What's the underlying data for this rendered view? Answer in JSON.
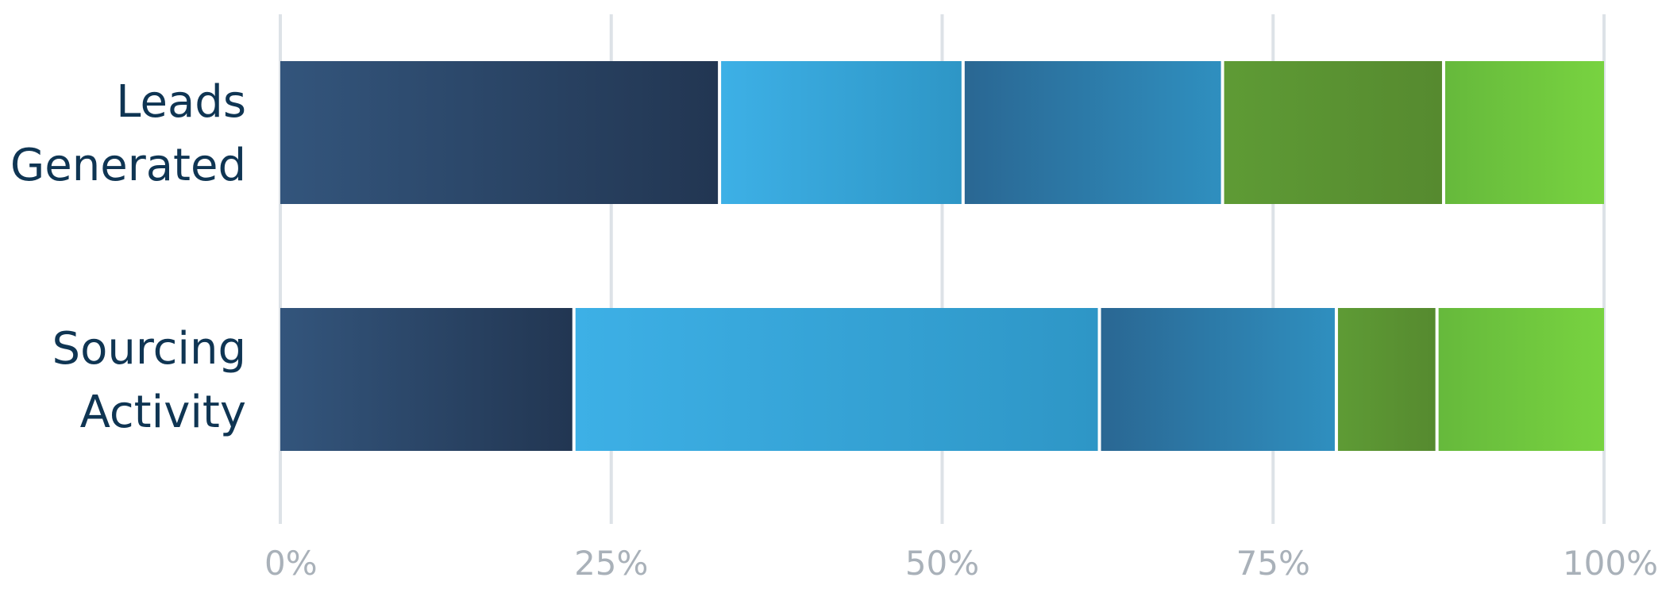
{
  "chart_data": {
    "type": "bar",
    "orientation": "horizontal",
    "stacked": "percent",
    "title": "",
    "xlabel": "",
    "ylabel": "",
    "xlim": [
      0,
      100
    ],
    "grid": true,
    "legend": "none",
    "categories": [
      [
        "Leads",
        "Generated"
      ],
      [
        "Sourcing",
        "Activity"
      ]
    ],
    "x_ticks": [
      "0%",
      "25%",
      "50%",
      "75%",
      "100%"
    ],
    "tick_values": [
      0,
      25,
      50,
      75,
      100
    ],
    "series": [
      {
        "values": [
          33.3,
          22.3
        ],
        "gradient": [
          "#33557c",
          "#223652"
        ]
      },
      {
        "values": [
          18.4,
          39.7
        ],
        "gradient": [
          "#3db0e6",
          "#2e96c6"
        ]
      },
      {
        "values": [
          19.6,
          17.9
        ],
        "gradient": [
          "#2a6793",
          "#2f8fbf"
        ]
      },
      {
        "values": [
          16.7,
          7.6
        ],
        "gradient": [
          "#5e9b35",
          "#568a2f"
        ]
      },
      {
        "values": [
          12.0,
          12.5
        ],
        "gradient": [
          "#66b93c",
          "#78d340"
        ]
      }
    ]
  }
}
